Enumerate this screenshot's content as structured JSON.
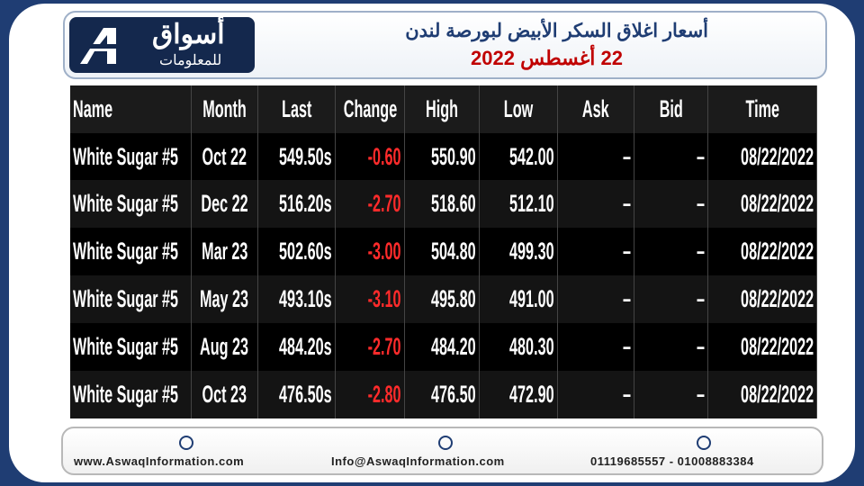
{
  "header": {
    "logo_title": "أسواق",
    "logo_subtitle": "للمعلومات",
    "title": "أسعار اغلاق السكر الأبيض لبورصة لندن",
    "date": "22 أغسطس 2022"
  },
  "table": {
    "columns": [
      "Name",
      "Month",
      "Last",
      "Change",
      "High",
      "Low",
      "Ask",
      "Bid",
      "Time"
    ],
    "rows": [
      [
        "White Sugar #5",
        "Oct 22",
        "549.50s",
        "-0.60",
        "550.90",
        "542.00",
        "–",
        "–",
        "08/22/2022"
      ],
      [
        "White Sugar #5",
        "Dec 22",
        "516.20s",
        "-2.70",
        "518.60",
        "512.10",
        "–",
        "–",
        "08/22/2022"
      ],
      [
        "White Sugar #5",
        "Mar 23",
        "502.60s",
        "-3.00",
        "504.80",
        "499.30",
        "–",
        "–",
        "08/22/2022"
      ],
      [
        "White Sugar #5",
        "May 23",
        "493.10s",
        "-3.10",
        "495.80",
        "491.00",
        "–",
        "–",
        "08/22/2022"
      ],
      [
        "White Sugar #5",
        "Aug 23",
        "484.20s",
        "-2.70",
        "484.20",
        "480.30",
        "–",
        "–",
        "08/22/2022"
      ],
      [
        "White Sugar #5",
        "Oct 23",
        "476.50s",
        "-2.80",
        "476.50",
        "472.90",
        "–",
        "–",
        "08/22/2022"
      ]
    ]
  },
  "footer": {
    "website": "www.AswaqInformation.com",
    "email": "Info@AswaqInformation.com",
    "phones": "01119685557 - 01008883384"
  }
}
